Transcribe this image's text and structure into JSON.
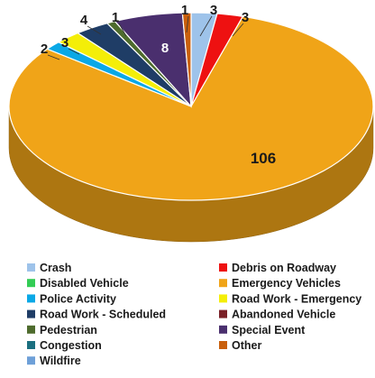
{
  "chart_data": {
    "type": "pie",
    "style": "3d",
    "title": "",
    "slices": [
      {
        "label": "Crash",
        "value": 3,
        "color": "#9ec3ea"
      },
      {
        "label": "Debris on Roadway",
        "value": 3,
        "color": "#ee1111"
      },
      {
        "label": "Disabled Vehicle",
        "value": 0,
        "color": "#33cc55"
      },
      {
        "label": "Emergency Vehicles",
        "value": 106,
        "color": "#f0a418"
      },
      {
        "label": "Police Activity",
        "value": 2,
        "color": "#0aa8e6"
      },
      {
        "label": "Road Work - Emergency",
        "value": 3,
        "color": "#f4ee08"
      },
      {
        "label": "Road Work - Scheduled",
        "value": 4,
        "color": "#1f3d66"
      },
      {
        "label": "Abandoned Vehicle",
        "value": 0,
        "color": "#7a2027"
      },
      {
        "label": "Pedestrian",
        "value": 1,
        "color": "#4e6b2d"
      },
      {
        "label": "Special Event",
        "value": 8,
        "color": "#4a2f6e"
      },
      {
        "label": "Congestion",
        "value": 0,
        "color": "#1b6f7f"
      },
      {
        "label": "Other",
        "value": 1,
        "color": "#c95f0c"
      },
      {
        "label": "Wildfire",
        "value": 0,
        "color": "#6ea0d8"
      }
    ],
    "legend_position": "bottom, two columns"
  }
}
